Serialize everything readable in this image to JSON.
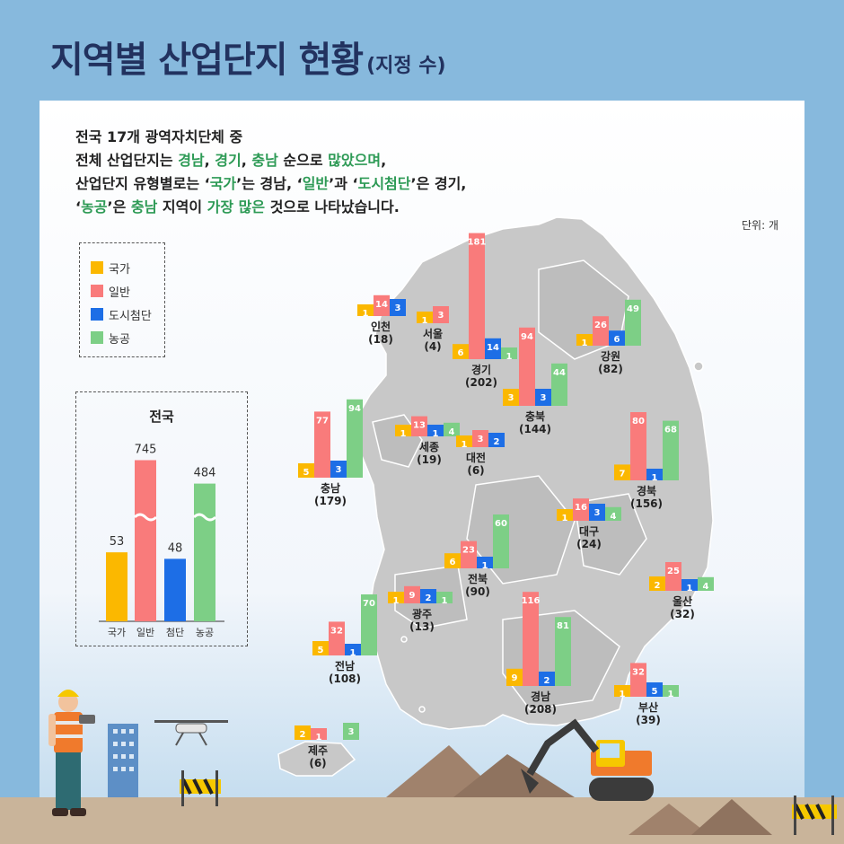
{
  "title": {
    "main": "지역별 산업단지 현황",
    "sub": "(지정 수)"
  },
  "summary": {
    "l1": "전국 17개 광역자치단체 중",
    "l2a": "전체 산업단지는 ",
    "l2b": "경남",
    "l2c": ", ",
    "l2d": "경기",
    "l2e": ", ",
    "l2f": "충남",
    "l2g": " 순으로 ",
    "l2h": "많았으며",
    "l2i": ",",
    "l3a": "산업단지 유형별로는 ‘",
    "l3b": "국가",
    "l3c": "’는 경남, ‘",
    "l3d": "일반",
    "l3e": "’과 ‘",
    "l3f": "도시첨단",
    "l3g": "’은 경기,",
    "l4a": "‘",
    "l4b": "농공",
    "l4c": "’은 ",
    "l4d": "충남",
    "l4e": " 지역이 ",
    "l4f": "가장 많은",
    "l4g": " 것으로 나타났습니다."
  },
  "unit": "단위: 개",
  "legend": [
    "국가",
    "일반",
    "도시첨단",
    "농공"
  ],
  "colors": {
    "national": "#fbb800",
    "general": "#f97b7b",
    "urban": "#1d6ee6",
    "agri": "#7dcf86",
    "highlight": "#2d9a55",
    "title": "#22325f",
    "map": "#c8c8c8"
  },
  "national_title": "전국",
  "chart_data": [
    {
      "type": "bar",
      "title": "전국",
      "categories": [
        "국가",
        "일반",
        "첨단",
        "농공"
      ],
      "values": [
        53,
        745,
        48,
        484
      ]
    },
    {
      "type": "bar",
      "series_names": [
        "국가",
        "일반",
        "도시첨단",
        "농공"
      ],
      "regions": [
        {
          "name": "인천",
          "total": "(18)",
          "values": [
            1,
            14,
            3,
            0
          ]
        },
        {
          "name": "서울",
          "total": "(4)",
          "values": [
            1,
            3,
            0,
            0
          ]
        },
        {
          "name": "경기",
          "total": "(202)",
          "values": [
            6,
            181,
            14,
            1
          ]
        },
        {
          "name": "충북",
          "total": "(144)",
          "values": [
            3,
            94,
            3,
            44
          ]
        },
        {
          "name": "강원",
          "total": "(82)",
          "values": [
            1,
            26,
            6,
            49
          ]
        },
        {
          "name": "충남",
          "total": "(179)",
          "values": [
            5,
            77,
            3,
            94
          ]
        },
        {
          "name": "세종",
          "total": "(19)",
          "values": [
            1,
            13,
            1,
            4
          ]
        },
        {
          "name": "대전",
          "total": "(6)",
          "values": [
            1,
            3,
            2,
            0
          ]
        },
        {
          "name": "경북",
          "total": "(156)",
          "values": [
            7,
            80,
            1,
            68
          ]
        },
        {
          "name": "전북",
          "total": "(90)",
          "values": [
            6,
            23,
            1,
            60
          ]
        },
        {
          "name": "대구",
          "total": "(24)",
          "values": [
            1,
            16,
            3,
            4
          ]
        },
        {
          "name": "울산",
          "total": "(32)",
          "values": [
            2,
            25,
            1,
            4
          ]
        },
        {
          "name": "광주",
          "total": "(13)",
          "values": [
            1,
            9,
            2,
            1
          ]
        },
        {
          "name": "전남",
          "total": "(108)",
          "values": [
            5,
            32,
            1,
            70
          ]
        },
        {
          "name": "경남",
          "total": "(208)",
          "values": [
            9,
            116,
            2,
            81
          ]
        },
        {
          "name": "부산",
          "total": "(39)",
          "values": [
            1,
            32,
            5,
            1
          ]
        },
        {
          "name": "제주",
          "total": "(6)",
          "values": [
            2,
            1,
            0,
            3
          ]
        }
      ]
    }
  ]
}
